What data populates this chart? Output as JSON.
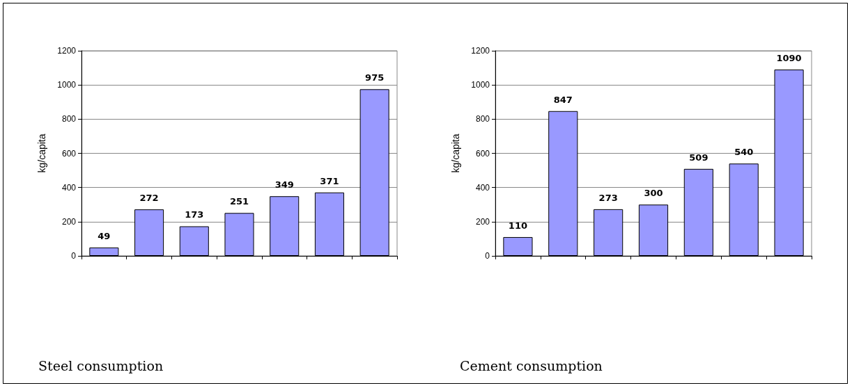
{
  "chart_data": [
    {
      "type": "bar",
      "title": "Steel consumption",
      "ylabel": "kg/capita",
      "categories": [
        null,
        null,
        null,
        null,
        null,
        null,
        null
      ],
      "values": [
        49,
        272,
        173,
        251,
        349,
        371,
        975
      ],
      "color": "#9999ff",
      "ylim": [
        0,
        1200
      ],
      "yticks": [
        0,
        200,
        400,
        600,
        800,
        1000,
        1200
      ],
      "grid": "y",
      "data_labels": true
    },
    {
      "type": "bar",
      "title": "Cement consumption",
      "ylabel": "kg/capita",
      "categories": [
        null,
        null,
        null,
        null,
        null,
        null,
        null
      ],
      "values": [
        110,
        847,
        273,
        300,
        509,
        540,
        1090
      ],
      "color": "#9999ff",
      "ylim": [
        0,
        1200
      ],
      "yticks": [
        0,
        200,
        400,
        600,
        800,
        1000,
        1200
      ],
      "grid": "y",
      "data_labels": true
    }
  ]
}
